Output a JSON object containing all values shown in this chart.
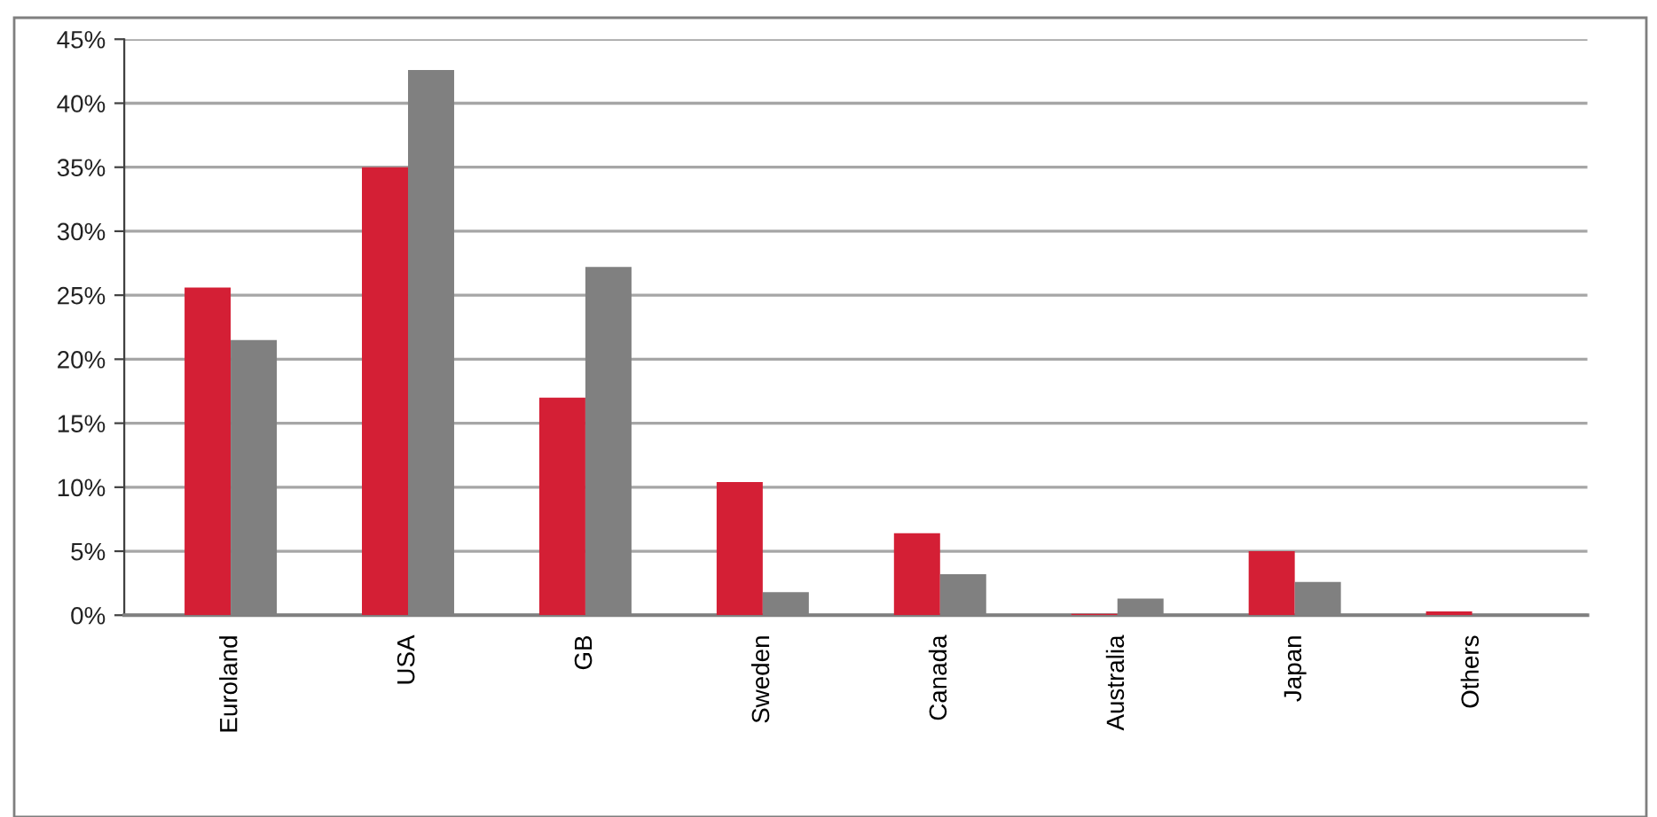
{
  "chart_data": {
    "type": "bar",
    "categories": [
      "Euroland",
      "USA",
      "GB",
      "Sweden",
      "Canada",
      "Australia",
      "Japan",
      "Others"
    ],
    "series": [
      {
        "color": "#d41f35",
        "values": [
          25.6,
          35.0,
          17.0,
          10.4,
          6.4,
          0.1,
          5.0,
          0.3
        ]
      },
      {
        "color": "#808080",
        "values": [
          21.5,
          42.6,
          27.2,
          1.8,
          3.2,
          1.3,
          2.6,
          null
        ]
      }
    ],
    "ylim": [
      0,
      45
    ],
    "yticks": [
      {
        "value": 0,
        "label": "0%"
      },
      {
        "value": 5,
        "label": "5%"
      },
      {
        "value": 10,
        "label": "10%"
      },
      {
        "value": 15,
        "label": "15%"
      },
      {
        "value": 20,
        "label": "20%"
      },
      {
        "value": 25,
        "label": "25%"
      },
      {
        "value": 30,
        "label": "30%"
      },
      {
        "value": 35,
        "label": "35%"
      },
      {
        "value": 40,
        "label": "40%"
      },
      {
        "value": 45,
        "label": "45%"
      }
    ],
    "grid": "y"
  }
}
